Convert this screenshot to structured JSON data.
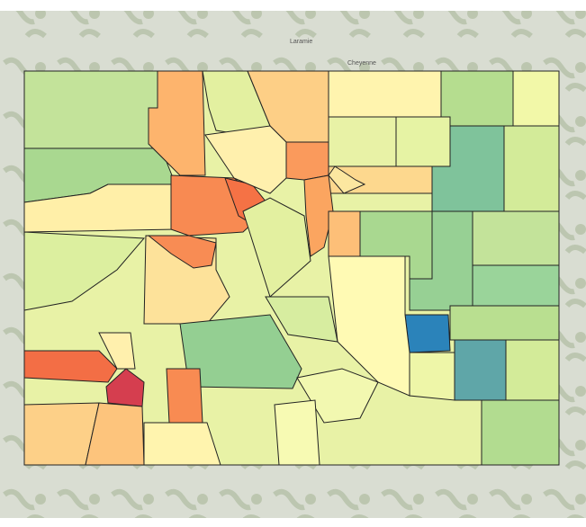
{
  "map": {
    "labels": [
      "Laramie",
      "Cheyenne"
    ]
  }
}
